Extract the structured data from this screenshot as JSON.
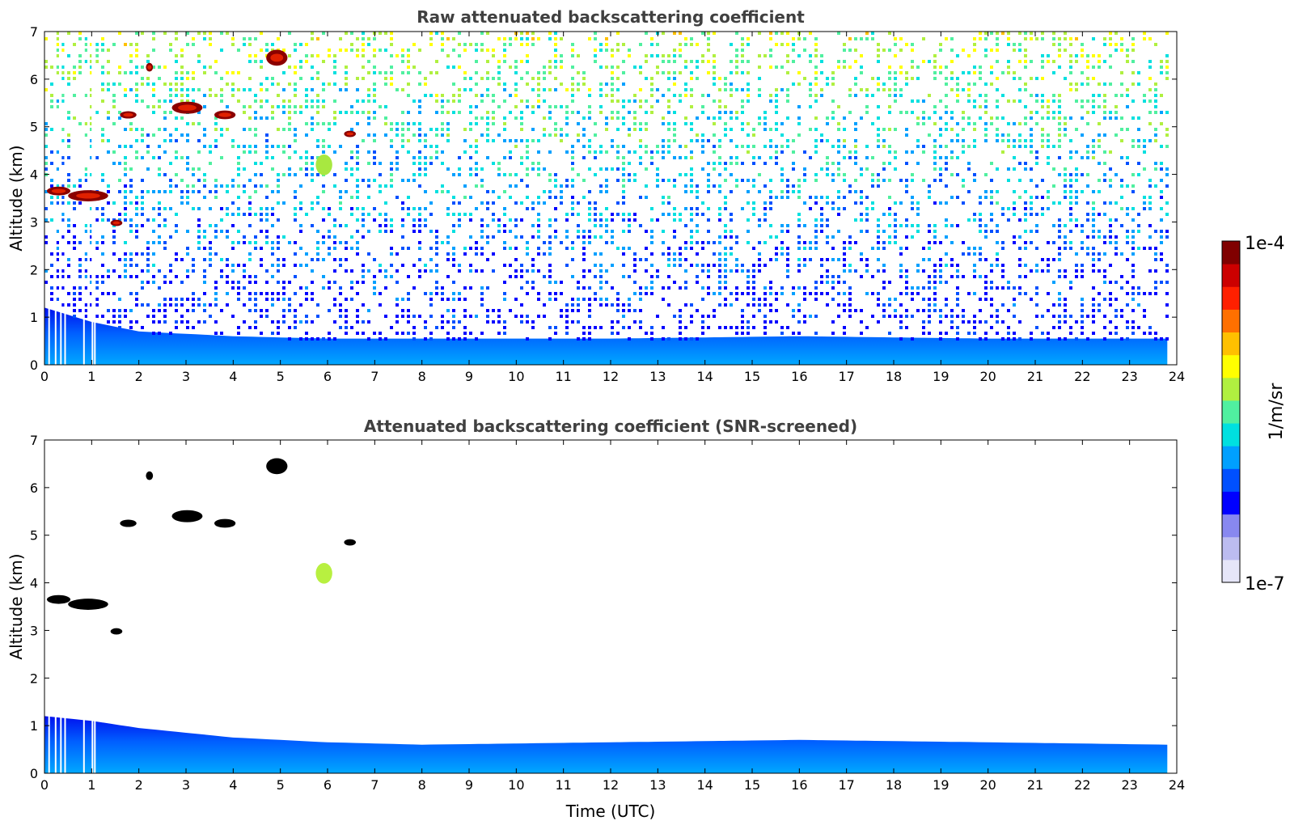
{
  "chart_data": [
    {
      "type": "heatmap",
      "title": "Raw attenuated backscattering coefficient",
      "xlabel": "",
      "ylabel": "Altitude (km)",
      "xlim": [
        0,
        24
      ],
      "ylim": [
        0,
        7
      ],
      "x_ticks": [
        "0",
        "1",
        "2",
        "3",
        "4",
        "5",
        "6",
        "7",
        "8",
        "9",
        "10",
        "11",
        "12",
        "13",
        "14",
        "15",
        "16",
        "17",
        "18",
        "19",
        "20",
        "21",
        "22",
        "23",
        "24"
      ],
      "y_ticks": [
        "0",
        "1",
        "2",
        "3",
        "4",
        "5",
        "6",
        "7"
      ],
      "data_x_extent": [
        0,
        23.8
      ],
      "boundary_layer_top_km": [
        [
          0,
          1.2
        ],
        [
          1,
          0.9
        ],
        [
          2,
          0.7
        ],
        [
          4,
          0.6
        ],
        [
          6,
          0.55
        ],
        [
          8,
          0.55
        ],
        [
          12,
          0.55
        ],
        [
          16,
          0.6
        ],
        [
          20,
          0.55
        ],
        [
          23.8,
          0.55
        ]
      ],
      "features": [
        {
          "t0": 0.05,
          "t1": 0.55,
          "h": 3.65,
          "dh": 0.15,
          "level": "high"
        },
        {
          "t0": 0.5,
          "t1": 1.35,
          "h": 3.55,
          "dh": 0.2,
          "level": "high"
        },
        {
          "t0": 1.4,
          "t1": 1.65,
          "h": 2.98,
          "dh": 0.1,
          "level": "high"
        },
        {
          "t0": 1.6,
          "t1": 1.95,
          "h": 5.25,
          "dh": 0.12,
          "level": "high"
        },
        {
          "t0": 2.15,
          "t1": 2.3,
          "h": 6.25,
          "dh": 0.15,
          "level": "high"
        },
        {
          "t0": 2.7,
          "t1": 3.35,
          "h": 5.4,
          "dh": 0.22,
          "level": "high"
        },
        {
          "t0": 3.6,
          "t1": 4.05,
          "h": 5.25,
          "dh": 0.15,
          "level": "high"
        },
        {
          "t0": 4.7,
          "t1": 5.15,
          "h": 6.45,
          "dh": 0.3,
          "level": "high"
        },
        {
          "t0": 6.35,
          "t1": 6.6,
          "h": 4.85,
          "dh": 0.1,
          "level": "high"
        },
        {
          "t0": 5.75,
          "t1": 6.1,
          "h": 4.2,
          "dh": 0.4,
          "level": "mid"
        }
      ]
    },
    {
      "type": "heatmap",
      "title": "Attenuated backscattering coefficient (SNR-screened)",
      "xlabel": "Time (UTC)",
      "ylabel": "Altitude (km)",
      "xlim": [
        0,
        24
      ],
      "ylim": [
        0,
        7
      ],
      "x_ticks": [
        "0",
        "1",
        "2",
        "3",
        "4",
        "5",
        "6",
        "7",
        "8",
        "9",
        "10",
        "11",
        "12",
        "13",
        "14",
        "15",
        "16",
        "17",
        "18",
        "19",
        "20",
        "21",
        "22",
        "23",
        "24"
      ],
      "y_ticks": [
        "0",
        "1",
        "2",
        "3",
        "4",
        "5",
        "6",
        "7"
      ],
      "data_x_extent": [
        0,
        23.8
      ],
      "boundary_layer_top_km": [
        [
          0,
          1.2
        ],
        [
          1,
          1.1
        ],
        [
          2,
          0.95
        ],
        [
          3,
          0.85
        ],
        [
          4,
          0.75
        ],
        [
          6,
          0.65
        ],
        [
          8,
          0.6
        ],
        [
          12,
          0.65
        ],
        [
          16,
          0.7
        ],
        [
          20,
          0.65
        ],
        [
          23.8,
          0.6
        ]
      ]
    }
  ],
  "colorbar": {
    "min_label": "1e-7",
    "max_label": "1e-4",
    "unit": "1/m/sr",
    "colors": [
      "#e6e6f8",
      "#bcbcf0",
      "#8888f0",
      "#0000ff",
      "#0050ff",
      "#00a0ff",
      "#00e0e0",
      "#50f0a0",
      "#b0f040",
      "#ffff00",
      "#ffc000",
      "#ff7000",
      "#ff2000",
      "#cc0000",
      "#800000"
    ]
  }
}
